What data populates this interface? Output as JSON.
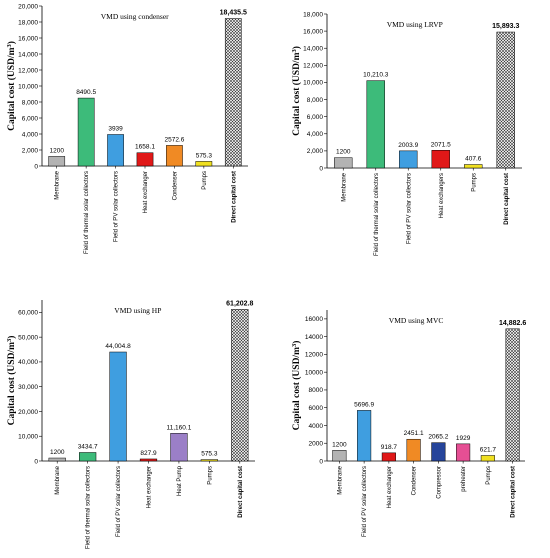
{
  "chart_data": [
    {
      "type": "bar",
      "title": "VMD using condenser",
      "ylabel": "Capital cost (USD/m3)",
      "ylim": [
        0,
        20000
      ],
      "yticks": [
        0,
        2000,
        4000,
        6000,
        8000,
        10000,
        12000,
        14000,
        16000,
        18000,
        20000
      ],
      "ytick_labels": [
        "0",
        "2,000",
        "4,000",
        "6,000",
        "8,000",
        "10,000",
        "12,000",
        "14,000",
        "16,000",
        "18,000",
        "20,000"
      ],
      "categories": [
        "Membrane",
        "Field of thermal solar collectors",
        "Field of PV solar collectors",
        "Heat exchanger",
        "Condenser",
        "Pumps",
        "Direct capital cost"
      ],
      "values": [
        1200,
        8490.5,
        3939,
        1658.1,
        2572.6,
        575.3,
        18435.5
      ],
      "value_labels": [
        "1200",
        "8490.5",
        "3939",
        "1658.1",
        "2572.6",
        "575.3",
        "18,435.5"
      ],
      "colors": [
        "#b3b3b3",
        "#3dbb7a",
        "#3f9ee0",
        "#e01818",
        "#f08a24",
        "#f0e020",
        "pattern"
      ],
      "grid": false
    },
    {
      "type": "bar",
      "title": "VMD using LRVP",
      "ylabel": "Capital cost (USD/m3)",
      "ylim": [
        0,
        18000
      ],
      "yticks": [
        0,
        2000,
        4000,
        6000,
        8000,
        10000,
        12000,
        14000,
        16000,
        18000
      ],
      "ytick_labels": [
        "0",
        "2,000",
        "4,000",
        "6,000",
        "8,000",
        "10,000",
        "12,000",
        "14,000",
        "16,000",
        "18,000"
      ],
      "categories": [
        "Membrane",
        "Field of thermal solar collectors",
        "Field of PV solar collectors",
        "Heat exchangers",
        "Pumps",
        "Direct capital cost"
      ],
      "values": [
        1200,
        10210.3,
        2003.9,
        2071.5,
        407.6,
        15893.3
      ],
      "value_labels": [
        "1200",
        "10,210.3",
        "2003.9",
        "2071.5",
        "407.6",
        "15,893.3"
      ],
      "colors": [
        "#b3b3b3",
        "#3dbb7a",
        "#3f9ee0",
        "#e01818",
        "#f0e020",
        "pattern"
      ],
      "grid": false
    },
    {
      "type": "bar",
      "title": "VMD using HP",
      "ylabel": "Capital cost (USD/m3)",
      "ylim": [
        0,
        65000
      ],
      "yticks": [
        0,
        10000,
        20000,
        30000,
        40000,
        50000,
        60000
      ],
      "ytick_labels": [
        "0",
        "10,000",
        "20,000",
        "30,000",
        "40,000",
        "50,000",
        "60,000"
      ],
      "categories": [
        "Membrane",
        "Field of thermal solar collectors",
        "Field of PV solar collectors",
        "Heat exchanger",
        "Heat Pump",
        "Pumps",
        "Direct capital cost"
      ],
      "values": [
        1200,
        3434.7,
        44004.8,
        827.9,
        11160.1,
        575.3,
        61202.8
      ],
      "value_labels": [
        "1200",
        "3434.7",
        "44,004.8",
        "827.9",
        "11,160.1",
        "575.3",
        "61,202.8"
      ],
      "colors": [
        "#b3b3b3",
        "#3dbb7a",
        "#3f9ee0",
        "#e01818",
        "#9b7fc7",
        "#f0e020",
        "pattern"
      ],
      "grid": false
    },
    {
      "type": "bar",
      "title": "VMD using MVC",
      "ylabel": "Capital cost (USD/m3)",
      "ylim": [
        0,
        17000
      ],
      "yticks": [
        0,
        2000,
        4000,
        6000,
        8000,
        10000,
        12000,
        14000,
        16000
      ],
      "ytick_labels": [
        "0",
        "2000",
        "4000",
        "6000",
        "8000",
        "10000",
        "12000",
        "14000",
        "16000"
      ],
      "categories": [
        "Membrane",
        "Field of PV solar collectors",
        "Heat exchanger",
        "Condenser",
        "Compressor",
        "preheater",
        "Pumps",
        "Direct capital cost"
      ],
      "values": [
        1200,
        5696.9,
        918.7,
        2451.1,
        2065.2,
        1929,
        621.7,
        14882.6
      ],
      "value_labels": [
        "1200",
        "5696.9",
        "918.7",
        "2451.1",
        "2065.2",
        "1929",
        "621.7",
        "14,882.6"
      ],
      "colors": [
        "#b3b3b3",
        "#3f9ee0",
        "#e01818",
        "#f08a24",
        "#26449a",
        "#e64f94",
        "#f0e020",
        "pattern"
      ],
      "grid": false
    }
  ]
}
